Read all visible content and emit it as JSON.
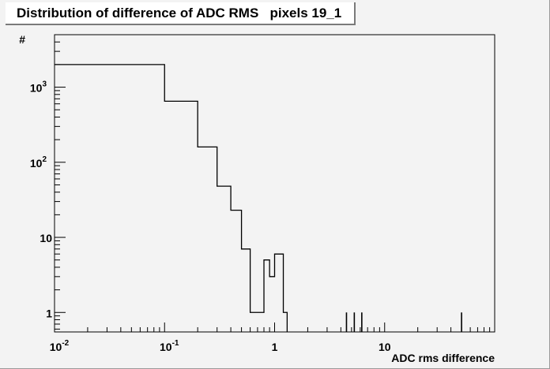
{
  "chart_data": {
    "type": "histogram",
    "title": "Distribution of difference of ADC RMS   pixels 19_1",
    "xlabel": "ADC rms difference",
    "ylabel": "#",
    "x_log": true,
    "y_log": true,
    "xlim": [
      0.01,
      100
    ],
    "ylim": [
      0.55,
      5000
    ],
    "x_ticks": [
      {
        "value": 0.01,
        "base": "10",
        "exp": "-2"
      },
      {
        "value": 0.1,
        "base": "10",
        "exp": "-1"
      },
      {
        "value": 1,
        "base": "1",
        "exp": ""
      },
      {
        "value": 10,
        "base": "10",
        "exp": ""
      }
    ],
    "y_ticks": [
      {
        "value": 1,
        "base": "1",
        "exp": ""
      },
      {
        "value": 10,
        "base": "10",
        "exp": ""
      },
      {
        "value": 100,
        "base": "10",
        "exp": "2"
      },
      {
        "value": 1000,
        "base": "10",
        "exp": "3"
      }
    ],
    "bin_width": 0.1,
    "bins": [
      {
        "x0": 0.01,
        "x1": 0.1,
        "count": 2000
      },
      {
        "x0": 0.1,
        "x1": 0.2,
        "count": 650
      },
      {
        "x0": 0.2,
        "x1": 0.3,
        "count": 160
      },
      {
        "x0": 0.3,
        "x1": 0.4,
        "count": 48
      },
      {
        "x0": 0.4,
        "x1": 0.5,
        "count": 23
      },
      {
        "x0": 0.5,
        "x1": 0.6,
        "count": 7
      },
      {
        "x0": 0.6,
        "x1": 0.8,
        "count": 1
      },
      {
        "x0": 0.8,
        "x1": 0.9,
        "count": 5
      },
      {
        "x0": 0.9,
        "x1": 1.0,
        "count": 3
      },
      {
        "x0": 1.0,
        "x1": 1.1,
        "count": 6
      },
      {
        "x0": 1.1,
        "x1": 1.2,
        "count": 6
      },
      {
        "x0": 1.2,
        "x1": 1.3,
        "count": 1
      }
    ],
    "isolated_entries": [
      {
        "x": 4.5,
        "count": 1
      },
      {
        "x": 5.3,
        "count": 1
      },
      {
        "x": 6.2,
        "count": 1
      },
      {
        "x": 50.0,
        "count": 1
      }
    ],
    "colors": {
      "canvas": "#f3f3f3",
      "frame": "#000000",
      "line": "#000000"
    }
  }
}
